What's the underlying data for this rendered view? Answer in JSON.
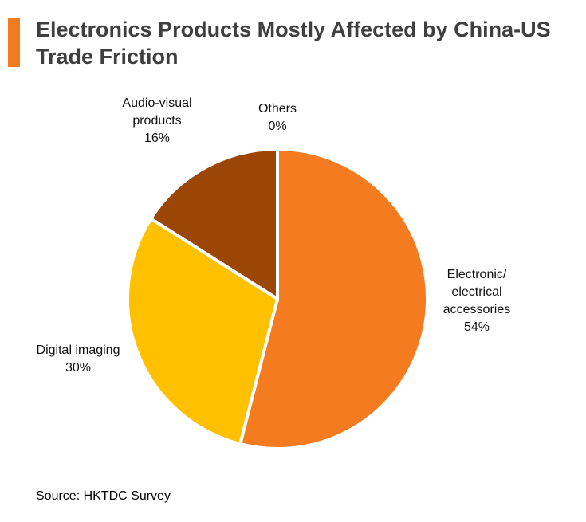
{
  "header": {
    "title_line1": "Electronics Products Mostly Affected by China-US",
    "title_line2": "Trade Friction",
    "accent_color": "#f47b20"
  },
  "chart_data": {
    "type": "pie",
    "title": "Electronics Products Mostly Affected by China-US Trade Friction",
    "slices": [
      {
        "label_lines": [
          "Electronic/",
          "electrical",
          "accessories"
        ],
        "label": "Electronic/ electrical accessories",
        "value": 54,
        "display": "54%",
        "color": "#f47b20"
      },
      {
        "label_lines": [
          "Digital imaging"
        ],
        "label": "Digital imaging",
        "value": 30,
        "display": "30%",
        "color": "#ffc000"
      },
      {
        "label_lines": [
          "Audio-visual",
          "products"
        ],
        "label": "Audio-visual products",
        "value": 16,
        "display": "16%",
        "color": "#9c4606"
      },
      {
        "label_lines": [
          "Others"
        ],
        "label": "Others",
        "value": 0,
        "display": "0%",
        "color": "#c65a11"
      }
    ],
    "start_angle_deg": 0,
    "direction": "clockwise",
    "legend": "none"
  },
  "footer": {
    "source": "Source: HKTDC Survey"
  }
}
